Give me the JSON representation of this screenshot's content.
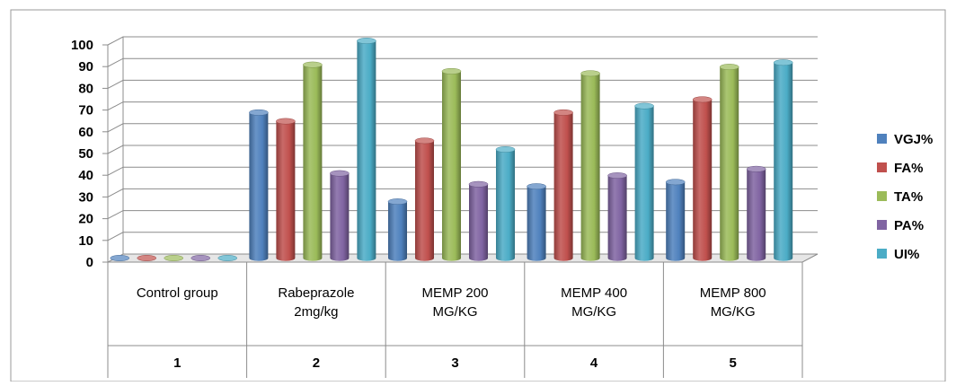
{
  "chart_data": {
    "type": "bar",
    "style": "3d-clustered-column",
    "title": "",
    "xlabel": "",
    "ylabel": "",
    "ylim": [
      0,
      100
    ],
    "yticks": [
      0,
      10,
      20,
      30,
      40,
      50,
      60,
      70,
      80,
      90,
      100
    ],
    "grid": true,
    "legend_position": "right",
    "categories": [
      "Control group",
      "Rabeprazole 2mg/kg",
      "MEMP 200 MG/KG",
      "MEMP 400 MG/KG",
      "MEMP 800 MG/KG"
    ],
    "category_lines": [
      [
        "Control group"
      ],
      [
        "Rabeprazole",
        "2mg/kg"
      ],
      [
        "MEMP 200",
        "MG/KG"
      ],
      [
        "MEMP 400",
        "MG/KG"
      ],
      [
        "MEMP 800",
        "MG/KG"
      ]
    ],
    "category_numbers": [
      "1",
      "2",
      "3",
      "4",
      "5"
    ],
    "series": [
      {
        "name": "VGJ%",
        "color": "#4F81BD",
        "values": [
          0,
          67,
          26,
          33,
          35
        ]
      },
      {
        "name": "FA%",
        "color": "#C0504D",
        "values": [
          0,
          63,
          54,
          67,
          73
        ]
      },
      {
        "name": "TA%",
        "color": "#9BBB59",
        "values": [
          0,
          89,
          86,
          85,
          88
        ]
      },
      {
        "name": "PA%",
        "color": "#8064A2",
        "values": [
          0,
          39,
          34,
          38,
          41
        ]
      },
      {
        "name": "UI%",
        "color": "#4BACC6",
        "values": [
          0,
          100,
          50,
          70,
          90
        ]
      }
    ]
  }
}
